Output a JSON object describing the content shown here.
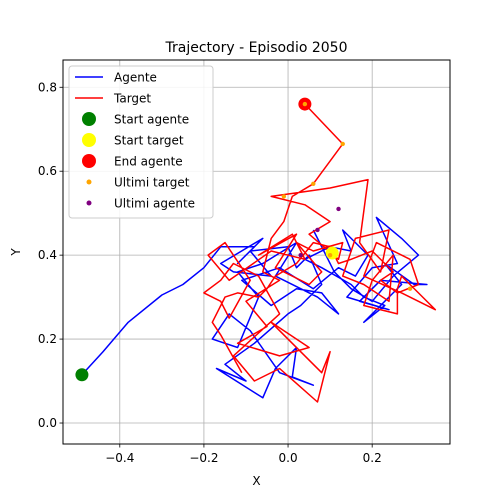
{
  "chart_data": {
    "type": "line",
    "title": "Trajectory - Episodio 2050",
    "xlabel": "X",
    "ylabel": "Y",
    "xlim": [
      -0.535,
      0.385
    ],
    "ylim": [
      -0.05,
      0.865
    ],
    "grid": true,
    "legend_position": "top-left",
    "x_ticks": [
      -0.4,
      -0.2,
      0.0,
      0.2
    ],
    "x_tick_labels": [
      "−0.4",
      "−0.2",
      "0.0",
      "0.2"
    ],
    "y_ticks": [
      0.0,
      0.2,
      0.4,
      0.6,
      0.8
    ],
    "y_tick_labels": [
      "0.0",
      "0.2",
      "0.4",
      "0.6",
      "0.8"
    ],
    "series": [
      {
        "name": "Agente",
        "kind": "line",
        "color": "#0000ff",
        "x": [
          -0.49,
          -0.44,
          -0.38,
          -0.3,
          -0.25,
          -0.2,
          -0.16,
          -0.08,
          -0.12,
          -0.06,
          -0.16,
          -0.13,
          -0.04,
          -0.09,
          0.0,
          0.02,
          0.05,
          0.08,
          0.03,
          0.0,
          -0.08,
          -0.15,
          -0.1,
          -0.17,
          -0.06,
          -0.03,
          0.02,
          0.01,
          0.06,
          -0.02,
          -0.09,
          -0.14,
          -0.18,
          -0.12,
          -0.07,
          -0.12,
          -0.06,
          0.02,
          -0.03,
          0.07,
          0.12,
          0.08,
          0.02,
          -0.04,
          -0.11,
          -0.02,
          0.06,
          0.12,
          0.16,
          0.19,
          0.13,
          0.15,
          0.1,
          0.04,
          0.08,
          0.15,
          0.18,
          0.23,
          0.18,
          0.25,
          0.27,
          0.23,
          0.3,
          0.33,
          0.22,
          0.17,
          0.24,
          0.14,
          0.2,
          0.26,
          0.21,
          0.27,
          0.31,
          0.25,
          0.2,
          0.15,
          0.11,
          0.06
        ],
        "y": [
          0.115,
          0.17,
          0.24,
          0.305,
          0.33,
          0.37,
          0.42,
          0.42,
          0.38,
          0.44,
          0.38,
          0.36,
          0.35,
          0.41,
          0.42,
          0.37,
          0.4,
          0.33,
          0.28,
          0.26,
          0.19,
          0.14,
          0.1,
          0.13,
          0.06,
          0.13,
          0.18,
          0.11,
          0.09,
          0.12,
          0.22,
          0.26,
          0.2,
          0.18,
          0.3,
          0.36,
          0.38,
          0.43,
          0.35,
          0.3,
          0.26,
          0.31,
          0.32,
          0.28,
          0.34,
          0.37,
          0.32,
          0.37,
          0.35,
          0.4,
          0.46,
          0.41,
          0.42,
          0.39,
          0.37,
          0.33,
          0.3,
          0.28,
          0.24,
          0.31,
          0.33,
          0.38,
          0.33,
          0.33,
          0.34,
          0.29,
          0.27,
          0.3,
          0.37,
          0.38,
          0.49,
          0.44,
          0.4,
          0.35,
          0.29,
          0.32,
          0.36,
          0.46
        ]
      },
      {
        "name": "Target",
        "kind": "line",
        "color": "#ff0000",
        "x": [
          0.04,
          0.04,
          0.13,
          0.06,
          0.01,
          -0.01,
          -0.04,
          -0.06,
          -0.02,
          -0.1,
          -0.05,
          -0.12,
          -0.02,
          0.05,
          -0.04,
          0.08,
          0.1,
          0.07,
          -0.02,
          -0.08,
          -0.13,
          -0.02,
          -0.07,
          -0.13,
          -0.16,
          -0.2,
          -0.16,
          -0.14,
          -0.09,
          -0.15,
          -0.19,
          -0.14,
          -0.04,
          0.04,
          0.01,
          -0.07,
          0.02,
          -0.03,
          0.05,
          0.08,
          0.02,
          0.06,
          0.13,
          0.12,
          0.05,
          0.1,
          0.04,
          -0.04,
          0.03,
          0.1,
          0.19,
          0.17,
          0.22,
          0.24,
          0.16,
          0.13,
          0.18,
          0.24,
          0.25,
          0.2,
          0.18,
          0.26,
          0.26,
          0.27,
          0.32,
          0.35,
          0.27,
          0.18,
          0.21,
          0.29,
          0.31,
          0.26,
          0.22,
          0.25,
          0.2,
          0.15,
          0.12,
          0.1,
          0.06,
          0.02,
          -0.03,
          -0.05,
          -0.07,
          -0.12,
          -0.15,
          -0.18,
          -0.16,
          -0.11
        ],
        "y": [
          0.76,
          0.76,
          0.665,
          0.57,
          0.54,
          0.48,
          0.44,
          0.36,
          0.34,
          0.29,
          0.23,
          0.19,
          0.16,
          0.18,
          0.24,
          0.12,
          0.17,
          0.05,
          0.13,
          0.1,
          0.16,
          0.26,
          0.35,
          0.38,
          0.34,
          0.31,
          0.29,
          0.25,
          0.34,
          0.43,
          0.4,
          0.34,
          0.41,
          0.39,
          0.45,
          0.4,
          0.45,
          0.37,
          0.33,
          0.36,
          0.43,
          0.41,
          0.43,
          0.39,
          0.45,
          0.48,
          0.52,
          0.54,
          0.55,
          0.56,
          0.58,
          0.43,
          0.36,
          0.46,
          0.44,
          0.35,
          0.33,
          0.29,
          0.4,
          0.34,
          0.28,
          0.26,
          0.32,
          0.35,
          0.3,
          0.27,
          0.31,
          0.35,
          0.43,
          0.39,
          0.33,
          0.31,
          0.34,
          0.36,
          0.41,
          0.39,
          0.38,
          0.42,
          0.43,
          0.38,
          0.35,
          0.32,
          0.3,
          0.31,
          0.3,
          0.24,
          0.21,
          0.12
        ]
      },
      {
        "name": "Start agente",
        "kind": "scatter",
        "color": "#008000",
        "size": "large",
        "x": [
          -0.49
        ],
        "y": [
          0.115
        ]
      },
      {
        "name": "Start target",
        "kind": "scatter",
        "color": "#ffff00",
        "size": "large",
        "x": [
          0.105
        ],
        "y": [
          0.405
        ]
      },
      {
        "name": "End agente",
        "kind": "scatter",
        "color": "#ff0000",
        "size": "large",
        "x": [
          0.04
        ],
        "y": [
          0.76
        ]
      },
      {
        "name": "Ultimi target",
        "kind": "scatter",
        "color": "#ffa500",
        "size": "small",
        "x": [
          0.04,
          0.13,
          0.06,
          -0.01,
          0.29,
          0.1
        ],
        "y": [
          0.76,
          0.665,
          0.57,
          0.54,
          0.32,
          0.4
        ]
      },
      {
        "name": "Ultimi agente",
        "kind": "scatter",
        "color": "#800080",
        "size": "small",
        "x": [
          0.12,
          0.07,
          0.03
        ],
        "y": [
          0.51,
          0.46,
          0.4
        ]
      }
    ]
  }
}
